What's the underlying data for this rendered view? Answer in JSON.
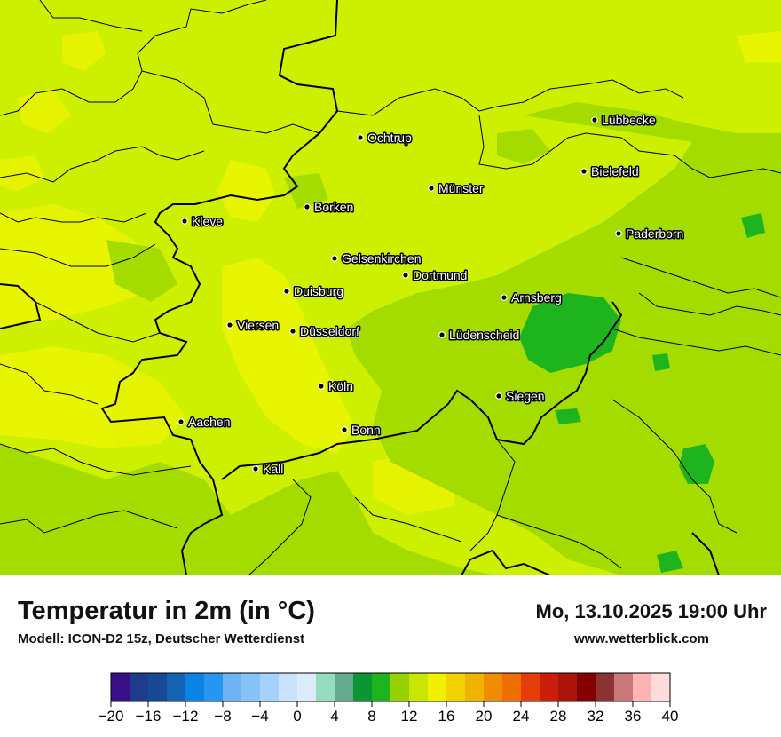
{
  "header": {
    "title": "Temperatur in 2m (in °C)",
    "model": "Modell: ICON-D2 15z, Deutscher Wetterdienst",
    "datetime": "Mo, 13.10.2025 19:00 Uhr",
    "website": "www.wetterblick.com"
  },
  "cities": [
    {
      "name": "Lübbecke"
    },
    {
      "name": "Ochtrup"
    },
    {
      "name": "Bielefeld"
    },
    {
      "name": "Münster"
    },
    {
      "name": "Borken"
    },
    {
      "name": "Kleve"
    },
    {
      "name": "Paderborn"
    },
    {
      "name": "Gelsenkirchen"
    },
    {
      "name": "Dortmund"
    },
    {
      "name": "Duisburg"
    },
    {
      "name": "Arnsberg"
    },
    {
      "name": "Viersen"
    },
    {
      "name": "Düsseldorf"
    },
    {
      "name": "Lüdenscheid"
    },
    {
      "name": "Köln"
    },
    {
      "name": "Siegen"
    },
    {
      "name": "Aachen"
    },
    {
      "name": "Bonn"
    },
    {
      "name": "Kall"
    }
  ],
  "legend": {
    "ticks": [
      "−20",
      "−16",
      "−12",
      "−8",
      "−4",
      "0",
      "4",
      "8",
      "12",
      "16",
      "20",
      "24",
      "28",
      "32",
      "36",
      "40"
    ],
    "colors": [
      "#3a0f8a",
      "#1e3c8c",
      "#174a94",
      "#1464b4",
      "#0a82e6",
      "#2896f0",
      "#6eb4f5",
      "#87c3f8",
      "#a5d2fa",
      "#c8e4fc",
      "#dcecfd",
      "#96dcc0",
      "#64aa8c",
      "#0a9632",
      "#1eb41e",
      "#96d200",
      "#c8e600",
      "#f0f000",
      "#f0d200",
      "#f0b400",
      "#f08c00",
      "#f06e00",
      "#e63c0a",
      "#c81e0a",
      "#aa140a",
      "#820000",
      "#8c3232",
      "#c87878",
      "#ffb4b4",
      "#ffdcdc"
    ]
  },
  "map_colors": {
    "base": "#ccf000",
    "yellow": "#f0f000",
    "light_green": "#96d200",
    "green": "#1eb41e"
  }
}
